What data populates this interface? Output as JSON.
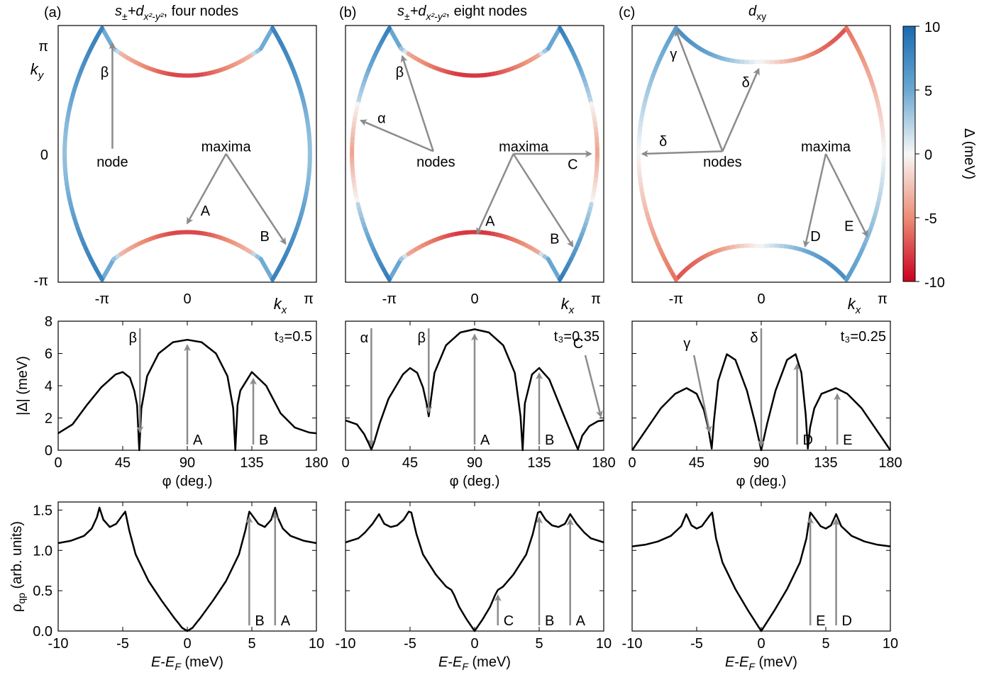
{
  "panel_labels": [
    "(a)",
    "(b)",
    "(c)"
  ],
  "panel_titles": [
    {
      "pre": "s",
      "sub": "±",
      "mid": "+d",
      "sub2": "x²-y²",
      "post": ", four nodes"
    },
    {
      "pre": "s",
      "sub": "±",
      "mid": "+d",
      "sub2": "x²-y²",
      "post": ", eight nodes"
    },
    {
      "pre": "d",
      "sub": "xy",
      "mid": "",
      "sub2": "",
      "post": ""
    }
  ],
  "fermi_surface": {
    "x_ticks": [
      "-π",
      "0",
      "π"
    ],
    "y_ticks": [
      "-π",
      "0",
      "π"
    ],
    "xlabel": "k",
    "xlabel_sub": "x",
    "ylabel": "k",
    "ylabel_sub": "y",
    "annotations": [
      {
        "node_label": "node",
        "node_markers": [
          "β"
        ],
        "maxima_label": "maxima",
        "maxima_markers": [
          "A",
          "B"
        ]
      },
      {
        "node_label": "nodes",
        "node_markers": [
          "α",
          "β"
        ],
        "maxima_label": "maxima",
        "maxima_markers": [
          "A",
          "B",
          "C"
        ]
      },
      {
        "node_label": "nodes",
        "node_markers": [
          "γ",
          "δ",
          "δ"
        ],
        "maxima_label": "maxima",
        "maxima_markers": [
          "D",
          "E"
        ]
      }
    ]
  },
  "colorbar": {
    "ticks": [
      "10",
      "5",
      "0",
      "-5",
      "-10"
    ],
    "label": "Δ (meV)",
    "colors": {
      "positive": "#2166ac",
      "zero": "#f7f7f7",
      "negative": "#ca0020"
    }
  },
  "colors": {
    "curve": "#000000",
    "arrow": "#8c8c8c"
  },
  "chart_data": [
    {
      "type": "line",
      "panel": "a-middle",
      "ylabel": "|Δ| (meV)",
      "xlabel": "φ (deg.)",
      "x_ticks": [
        "0",
        "45",
        "90",
        "135",
        "180"
      ],
      "y_ticks": [
        "0",
        "2",
        "4",
        "6",
        "8"
      ],
      "xlim": [
        0,
        180
      ],
      "ylim": [
        0,
        8
      ],
      "param_label": "t₃=0.5",
      "x": [
        0,
        10,
        20,
        30,
        40,
        45,
        50,
        53,
        55,
        56.5,
        58,
        62,
        70,
        80,
        90,
        100,
        110,
        118,
        122,
        123.5,
        125,
        127,
        135,
        145,
        155,
        165,
        175,
        180
      ],
      "y": [
        1.05,
        1.6,
        2.8,
        3.9,
        4.7,
        4.85,
        4.5,
        3.7,
        2.8,
        0.0,
        2.6,
        4.6,
        6.0,
        6.7,
        6.85,
        6.7,
        6.0,
        4.6,
        2.6,
        0.0,
        2.8,
        3.7,
        4.85,
        4.0,
        2.3,
        1.4,
        1.1,
        1.05
      ],
      "markers": [
        {
          "label": "β",
          "x": 57,
          "kind": "from-top"
        },
        {
          "label": "A",
          "x": 90,
          "kind": "from-bottom"
        },
        {
          "label": "B",
          "x": 136,
          "kind": "from-bottom"
        }
      ]
    },
    {
      "type": "line",
      "panel": "b-middle",
      "x_ticks": [
        "0",
        "45",
        "90",
        "135",
        "180"
      ],
      "xlabel": "φ (deg.)",
      "xlim": [
        0,
        180
      ],
      "ylim": [
        0,
        8
      ],
      "param_label": "t₃=0.35",
      "x": [
        0,
        8,
        13,
        16,
        18,
        20,
        24,
        30,
        40,
        45,
        50,
        54,
        56.5,
        58,
        62,
        70,
        80,
        90,
        100,
        110,
        118,
        122,
        123.5,
        125,
        130,
        135,
        142,
        152,
        158,
        162,
        165,
        170,
        176,
        180
      ],
      "y": [
        1.85,
        1.6,
        1.0,
        0.45,
        0.05,
        0.5,
        1.7,
        3.2,
        4.7,
        5.1,
        4.8,
        3.9,
        2.9,
        2.1,
        4.8,
        6.5,
        7.3,
        7.5,
        7.3,
        6.5,
        4.8,
        2.1,
        0.0,
        2.9,
        4.7,
        5.1,
        4.4,
        2.2,
        0.9,
        0.05,
        0.9,
        1.5,
        1.8,
        1.85
      ],
      "markers": [
        {
          "label": "α",
          "x": 18,
          "kind": "from-top"
        },
        {
          "label": "β",
          "x": 58,
          "kind": "from-top"
        },
        {
          "label": "A",
          "x": 90,
          "kind": "from-bottom"
        },
        {
          "label": "B",
          "x": 135,
          "kind": "from-bottom"
        },
        {
          "label": "C",
          "x": 178,
          "kind": "diagonal"
        }
      ]
    },
    {
      "type": "line",
      "panel": "c-middle",
      "x_ticks": [
        "0",
        "45",
        "90",
        "135",
        "180"
      ],
      "xlabel": "φ (deg.)",
      "xlim": [
        0,
        180
      ],
      "ylim": [
        0,
        8
      ],
      "param_label": "t₃=0.25",
      "x": [
        0,
        10,
        20,
        30,
        38,
        45,
        50,
        53,
        55.5,
        57,
        60,
        66,
        72,
        80,
        86,
        90,
        94,
        100,
        108,
        114,
        118,
        121,
        122.5,
        124,
        127,
        132,
        142,
        150,
        160,
        170,
        180
      ],
      "y": [
        0.0,
        1.3,
        2.6,
        3.5,
        3.85,
        3.5,
        2.5,
        1.4,
        0.1,
        1.8,
        4.3,
        5.95,
        5.6,
        3.7,
        1.6,
        0.0,
        1.6,
        3.7,
        5.6,
        5.95,
        4.8,
        2.2,
        0.1,
        1.4,
        2.6,
        3.5,
        3.85,
        3.5,
        2.6,
        1.3,
        0.0
      ],
      "markers": [
        {
          "label": "γ",
          "x": 54,
          "kind": "diagonal"
        },
        {
          "label": "δ",
          "x": 90,
          "kind": "from-top"
        },
        {
          "label": "D",
          "x": 115,
          "kind": "from-bottom"
        },
        {
          "label": "E",
          "x": 143,
          "kind": "from-bottom"
        }
      ]
    },
    {
      "type": "line",
      "panel": "a-bottom",
      "ylabel": "ρqp (arb. units)",
      "xlabel": "E-E_F (meV)",
      "x_ticks": [
        "-10",
        "-5",
        "0",
        "5",
        "10"
      ],
      "y_ticks": [
        "0.0",
        "0.5",
        "1.0",
        "1.5"
      ],
      "xlim": [
        -10,
        10
      ],
      "ylim": [
        0,
        1.6
      ],
      "x": [
        -10,
        -9,
        -8,
        -7.4,
        -7.0,
        -6.8,
        -6.5,
        -6.0,
        -5.5,
        -5.0,
        -4.8,
        -4.5,
        -4.0,
        -3.0,
        -2.0,
        -1.5,
        -1.0,
        -0.7,
        -0.4,
        0,
        0.4,
        0.7,
        1.0,
        1.5,
        2.0,
        3.0,
        4.0,
        4.5,
        4.8,
        5.0,
        5.5,
        6.0,
        6.5,
        6.8,
        7.0,
        7.4,
        8,
        9,
        10
      ],
      "y": [
        1.09,
        1.12,
        1.18,
        1.27,
        1.41,
        1.53,
        1.38,
        1.29,
        1.33,
        1.44,
        1.48,
        1.25,
        0.95,
        0.62,
        0.38,
        0.27,
        0.16,
        0.1,
        0.04,
        0.0,
        0.04,
        0.1,
        0.16,
        0.27,
        0.38,
        0.62,
        0.95,
        1.25,
        1.48,
        1.44,
        1.33,
        1.29,
        1.38,
        1.53,
        1.41,
        1.27,
        1.18,
        1.12,
        1.09
      ],
      "markers": [
        {
          "label": "B",
          "x": 4.8,
          "kind": "from-bottom"
        },
        {
          "label": "A",
          "x": 6.8,
          "kind": "from-bottom"
        }
      ]
    },
    {
      "type": "line",
      "panel": "b-bottom",
      "xlabel": "E-E_F (meV)",
      "x_ticks": [
        "-10",
        "-5",
        "0",
        "5",
        "10"
      ],
      "xlim": [
        -10,
        10
      ],
      "ylim": [
        0,
        1.6
      ],
      "x": [
        -10,
        -9,
        -8.5,
        -7.9,
        -7.4,
        -7.0,
        -6.5,
        -6.0,
        -5.5,
        -5.1,
        -4.9,
        -4.5,
        -4.0,
        -3.0,
        -2.2,
        -1.8,
        -1.6,
        -1.2,
        -0.6,
        0,
        0.6,
        1.2,
        1.6,
        1.8,
        2.2,
        3.0,
        4.0,
        4.5,
        4.9,
        5.1,
        5.5,
        6.0,
        6.5,
        7.0,
        7.4,
        7.9,
        8.5,
        9,
        10
      ],
      "y": [
        1.1,
        1.15,
        1.22,
        1.33,
        1.45,
        1.33,
        1.29,
        1.31,
        1.38,
        1.48,
        1.47,
        1.2,
        0.95,
        0.7,
        0.55,
        0.51,
        0.45,
        0.3,
        0.14,
        0.0,
        0.14,
        0.3,
        0.45,
        0.51,
        0.55,
        0.7,
        0.95,
        1.2,
        1.47,
        1.48,
        1.38,
        1.31,
        1.29,
        1.33,
        1.45,
        1.33,
        1.22,
        1.15,
        1.1
      ],
      "markers": [
        {
          "label": "C",
          "x": 1.8,
          "kind": "from-bottom"
        },
        {
          "label": "B",
          "x": 5.0,
          "kind": "from-bottom"
        },
        {
          "label": "A",
          "x": 7.4,
          "kind": "from-bottom"
        }
      ]
    },
    {
      "type": "line",
      "panel": "c-bottom",
      "xlabel": "E-E_F (meV)",
      "x_ticks": [
        "-10",
        "-5",
        "0",
        "5",
        "10"
      ],
      "xlim": [
        -10,
        10
      ],
      "ylim": [
        0,
        1.6
      ],
      "x": [
        -10,
        -9,
        -8,
        -7,
        -6.2,
        -5.8,
        -5.4,
        -5.0,
        -4.6,
        -4.0,
        -3.8,
        -3.5,
        -3.0,
        -2.0,
        -1.0,
        0,
        1.0,
        2.0,
        3.0,
        3.5,
        3.8,
        4.0,
        4.6,
        5.0,
        5.4,
        5.8,
        6.2,
        7,
        8,
        9,
        10
      ],
      "y": [
        1.05,
        1.07,
        1.11,
        1.18,
        1.3,
        1.45,
        1.31,
        1.27,
        1.3,
        1.43,
        1.47,
        1.15,
        0.85,
        0.52,
        0.25,
        0.0,
        0.25,
        0.52,
        0.85,
        1.15,
        1.47,
        1.43,
        1.3,
        1.27,
        1.31,
        1.45,
        1.3,
        1.18,
        1.11,
        1.07,
        1.05
      ],
      "markers": [
        {
          "label": "E",
          "x": 3.8,
          "kind": "from-bottom"
        },
        {
          "label": "D",
          "x": 5.8,
          "kind": "from-bottom"
        }
      ]
    }
  ]
}
